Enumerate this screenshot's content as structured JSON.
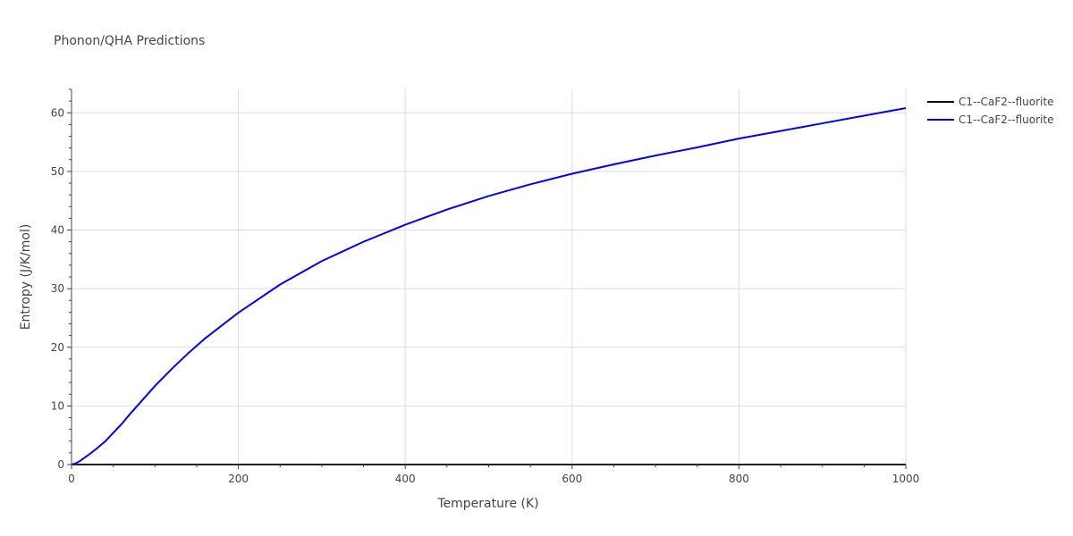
{
  "chart_data": {
    "type": "line",
    "title": "Phonon/QHA Predictions",
    "xlabel": "Temperature (K)",
    "ylabel": "Entropy (J/K/mol)",
    "xlim": [
      0,
      1000
    ],
    "ylim": [
      0,
      64
    ],
    "xticks": [
      0,
      200,
      400,
      600,
      800,
      1000
    ],
    "yticks": [
      0,
      10,
      20,
      30,
      40,
      50,
      60
    ],
    "xtick_labels": [
      "0",
      "200",
      "400",
      "600",
      "800",
      "1000"
    ],
    "ytick_labels": [
      "0",
      "10",
      "20",
      "30",
      "40",
      "50",
      "60"
    ],
    "grid": true,
    "legend_position": "top-right",
    "series": [
      {
        "name": "C1--CaF2--fluorite",
        "color": "#000000",
        "x": [
          0,
          100,
          200,
          300,
          400,
          500,
          600,
          700,
          800,
          900,
          1000
        ],
        "y": [
          0,
          0,
          0,
          0,
          0,
          0,
          0,
          0,
          0,
          0,
          0
        ]
      },
      {
        "name": "C1--CaF2--fluorite",
        "color": "#0000ff",
        "x": [
          0,
          5,
          10,
          20,
          30,
          40,
          50,
          60,
          70,
          80,
          90,
          100,
          120,
          140,
          160,
          180,
          200,
          250,
          300,
          350,
          400,
          450,
          500,
          550,
          600,
          650,
          700,
          750,
          800,
          850,
          900,
          950,
          1000
        ],
        "y": [
          0,
          0.2,
          0.6,
          1.6,
          2.7,
          3.9,
          5.4,
          6.9,
          8.6,
          10.2,
          11.8,
          13.4,
          16.3,
          19.0,
          21.5,
          23.7,
          25.9,
          30.7,
          34.7,
          38.0,
          40.9,
          43.5,
          45.8,
          47.8,
          49.6,
          51.2,
          52.7,
          54.1,
          55.6,
          56.9,
          58.2,
          59.5,
          60.8
        ]
      }
    ]
  }
}
